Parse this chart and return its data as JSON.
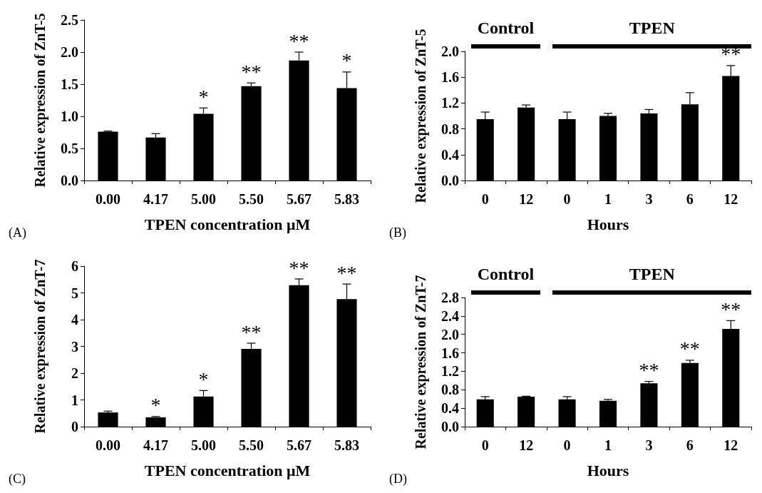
{
  "chart_data": [
    {
      "type": "bar",
      "xlabel": "TPEN concentration μM",
      "ylabel": "Relative expression of ZnT-5",
      "annotations": [
        "(A)"
      ],
      "categories": [
        "0.00",
        "4.17",
        "5.00",
        "5.50",
        "5.67",
        "5.83"
      ],
      "color": "#000000",
      "values": [
        0.76,
        0.67,
        1.04,
        1.47,
        1.87,
        1.44
      ],
      "errors": [
        [
          0.76,
          0.77
        ],
        [
          0.67,
          0.73
        ],
        [
          1.04,
          1.13
        ],
        [
          1.47,
          1.52
        ],
        [
          1.87,
          2.0
        ],
        [
          1.44,
          1.69
        ]
      ],
      "value_labels": [
        null,
        null,
        "*",
        "**",
        "**",
        "*"
      ],
      "ylim": [
        0,
        2.5
      ],
      "yticks": [
        {
          "value": 0,
          "label": "0.0"
        },
        {
          "value": 0.5,
          "label": "0.5"
        },
        {
          "value": 1,
          "label": "1.0"
        },
        {
          "value": 1.5,
          "label": "1.5"
        },
        {
          "value": 2,
          "label": "2.0"
        },
        {
          "value": 2.5,
          "label": "2.5"
        }
      ],
      "grid": false
    },
    {
      "type": "bar",
      "xlabel": "Hours",
      "ylabel": "Relative expression of ZnT-5",
      "annotations": [
        "(B)",
        "Control",
        "TPEN"
      ],
      "categories": [
        "0",
        "12",
        "0",
        "1",
        "3",
        "6",
        "12"
      ],
      "color": "#000000",
      "values": [
        0.95,
        1.13,
        0.95,
        1.0,
        1.04,
        1.18,
        1.62
      ],
      "errors": [
        [
          0.95,
          1.06
        ],
        [
          1.13,
          1.17
        ],
        [
          0.95,
          1.06
        ],
        [
          1.0,
          1.04
        ],
        [
          1.04,
          1.1
        ],
        [
          1.18,
          1.36
        ],
        [
          1.62,
          1.78
        ]
      ],
      "value_labels": [
        null,
        null,
        null,
        null,
        null,
        null,
        "**"
      ],
      "ylim": [
        0,
        2.0
      ],
      "yticks": [
        {
          "value": 0,
          "label": "0.0"
        },
        {
          "value": 0.4,
          "label": "0.4"
        },
        {
          "value": 0.8,
          "label": "0.8"
        },
        {
          "value": 1.2,
          "label": "1.2"
        },
        {
          "value": 1.6,
          "label": "1.6"
        },
        {
          "value": 2,
          "label": "2.0"
        }
      ],
      "grid": false
    },
    {
      "type": "bar",
      "xlabel": "TPEN concentration μM",
      "ylabel": "Relative expression of ZnT-7",
      "annotations": [
        "(C)"
      ],
      "categories": [
        "0.00",
        "4.17",
        "5.00",
        "5.50",
        "5.67",
        "5.83"
      ],
      "color": "#000000",
      "values": [
        0.53,
        0.35,
        1.13,
        2.91,
        5.29,
        4.77
      ],
      "errors": [
        [
          0.53,
          0.58
        ],
        [
          0.35,
          0.38
        ],
        [
          1.13,
          1.35
        ],
        [
          2.91,
          3.12
        ],
        [
          5.29,
          5.52
        ],
        [
          4.77,
          5.33
        ]
      ],
      "value_labels": [
        null,
        "*",
        "*",
        "**",
        "**",
        "**"
      ],
      "ylim": [
        0,
        6
      ],
      "yticks": [
        0,
        1,
        2,
        3,
        4,
        5,
        6
      ],
      "grid": false
    },
    {
      "type": "bar",
      "xlabel": "Hours",
      "ylabel": "Relative expression of ZnT-7",
      "annotations": [
        "(D)",
        "Control",
        "TPEN"
      ],
      "categories": [
        "0",
        "12",
        "0",
        "1",
        "3",
        "6",
        "12"
      ],
      "color": "#000000",
      "values": [
        0.59,
        0.65,
        0.59,
        0.56,
        0.94,
        1.38,
        2.12
      ],
      "errors": [
        [
          0.59,
          0.65
        ],
        [
          0.65,
          0.66
        ],
        [
          0.59,
          0.65
        ],
        [
          0.56,
          0.59
        ],
        [
          0.94,
          0.98
        ],
        [
          1.38,
          1.44
        ],
        [
          2.12,
          2.3
        ]
      ],
      "value_labels": [
        null,
        null,
        null,
        null,
        "**",
        "**",
        "**"
      ],
      "ylim": [
        0,
        2.8
      ],
      "yticks": [
        {
          "value": 0,
          "label": "0.0"
        },
        {
          "value": 0.4,
          "label": "0.4"
        },
        {
          "value": 0.8,
          "label": "0.8"
        },
        {
          "value": 1.2,
          "label": "1.2"
        },
        {
          "value": 1.6,
          "label": "1.6"
        },
        {
          "value": 2,
          "label": "2.0"
        },
        {
          "value": 2.4,
          "label": "2.4"
        },
        {
          "value": 2.8,
          "label": "2.8"
        }
      ],
      "grid": false
    }
  ]
}
